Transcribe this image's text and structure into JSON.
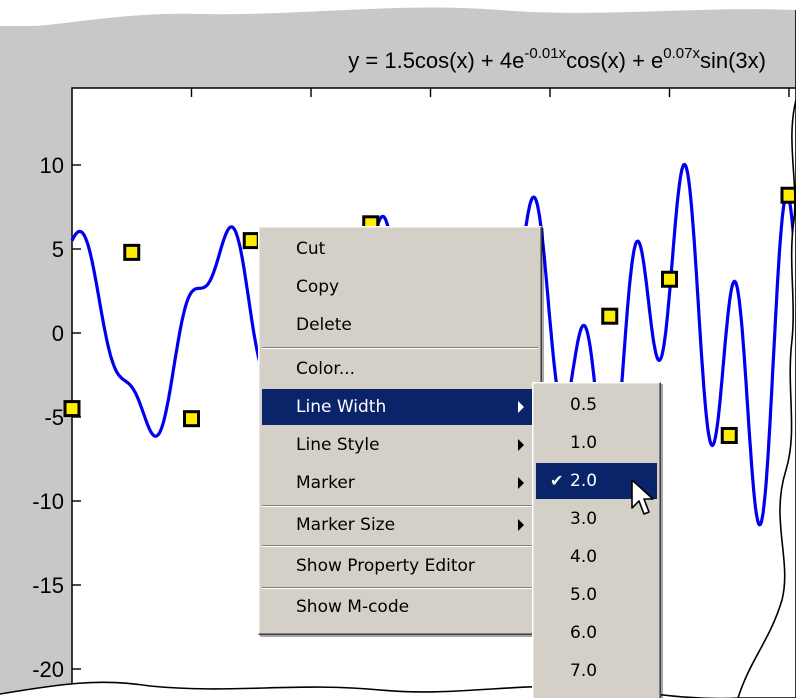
{
  "chart_data": {
    "type": "line",
    "title": "y = 1.5cos(x) + 4e^(-0.01x)cos(x) + e^(0.07x)sin(3x)",
    "title_parts": {
      "a": "y = 1.5cos(x) + 4e",
      "b": "-0.01x",
      "c": "cos(x) + e",
      "d": "0.07x",
      "e": "sin(3x)"
    },
    "expression": "1.5cos(x) + 4e^(-0.01x)cos(x) + e^(0.07x)sin(3x)",
    "xlim": [
      0,
      40
    ],
    "ylim": [
      -21,
      13
    ],
    "yticks": [
      "10",
      "5",
      "0",
      "-5",
      "-10",
      "-15",
      "-20"
    ],
    "ytick_values": [
      10,
      5,
      0,
      -5,
      -10,
      -15,
      -20
    ],
    "series": [
      {
        "line_color": "#0000ee",
        "marker": "square",
        "marker_face": "#ffee00",
        "marker_edge": "#000000"
      }
    ],
    "markers": [
      {
        "x": 0,
        "y": -4.5
      },
      {
        "x": 2.5,
        "y": 4.8
      },
      {
        "x": 5,
        "y": -5.1
      },
      {
        "x": 7.5,
        "y": 5.5
      },
      {
        "x": 12.5,
        "y": 6.5
      },
      {
        "x": 22.5,
        "y": 1.0
      },
      {
        "x": 25,
        "y": 3.2
      },
      {
        "x": 27.5,
        "y": -6.1
      },
      {
        "x": 30,
        "y": 8.2
      }
    ]
  },
  "context_menu": {
    "items": [
      {
        "label": "Cut"
      },
      {
        "label": "Copy"
      },
      {
        "label": "Delete"
      },
      {
        "label": "Color..."
      },
      {
        "label": "Line Width"
      },
      {
        "label": "Line Style"
      },
      {
        "label": "Marker"
      },
      {
        "label": "Marker Size"
      },
      {
        "label": "Show Property Editor"
      },
      {
        "label": "Show M-code"
      }
    ],
    "active": "Line Width"
  },
  "line_width_menu": {
    "items": [
      "0.5",
      "1.0",
      "2.0",
      "3.0",
      "4.0",
      "5.0",
      "6.0",
      "7.0"
    ],
    "selected": "2.0",
    "check_mark": "✔"
  },
  "colors": {
    "title_bar": "#c8c8c8",
    "menu_bg": "#d4d0c8",
    "menu_highlight": "#0a246a"
  }
}
